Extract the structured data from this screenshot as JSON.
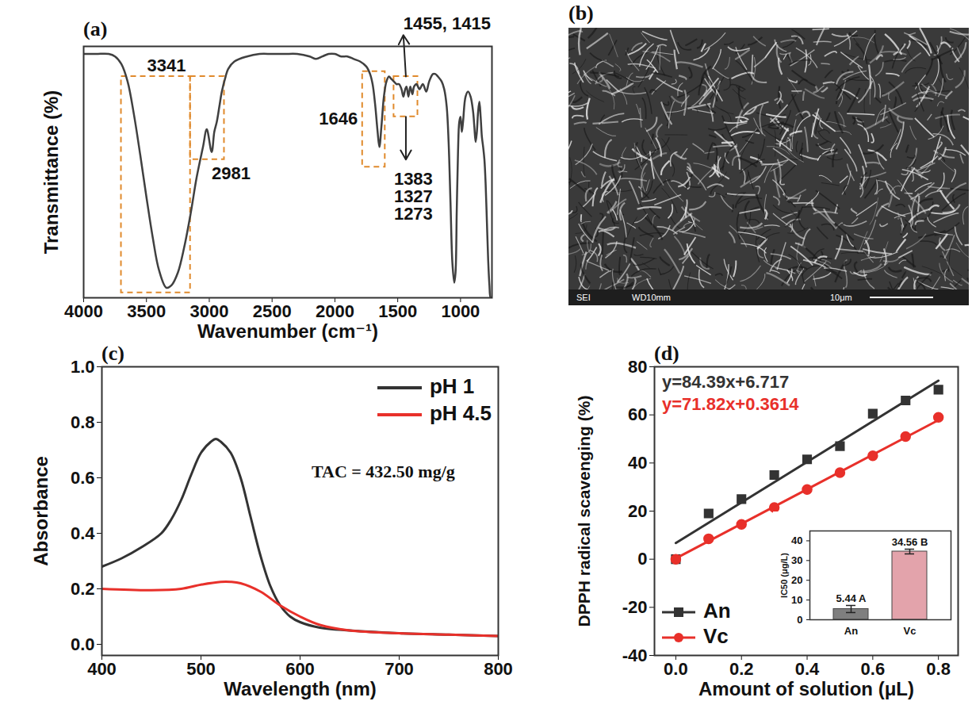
{
  "chart_data": [
    {
      "type": "line",
      "title": "(a)",
      "x_label": "Wavenumber (cm⁻¹)",
      "y_label": "Transmittance (%)",
      "xlim": [
        4000,
        750
      ],
      "xticks": [
        4000,
        3500,
        3000,
        2500,
        2000,
        1500,
        1000
      ],
      "ylim": [
        0,
        100
      ],
      "tick_labels": "x",
      "color": "#404040",
      "x": [
        4000,
        3900,
        3800,
        3750,
        3700,
        3650,
        3600,
        3550,
        3500,
        3450,
        3400,
        3341,
        3300,
        3250,
        3200,
        3150,
        3100,
        3050,
        3020,
        2981,
        2960,
        2940,
        2920,
        2900,
        2870,
        2850,
        2800,
        2700,
        2600,
        2500,
        2400,
        2300,
        2200,
        2150,
        2100,
        2050,
        2000,
        1950,
        1900,
        1850,
        1800,
        1750,
        1720,
        1700,
        1680,
        1660,
        1646,
        1630,
        1610,
        1590,
        1570,
        1550,
        1530,
        1510,
        1490,
        1470,
        1455,
        1440,
        1430,
        1415,
        1400,
        1383,
        1370,
        1350,
        1327,
        1300,
        1273,
        1250,
        1220,
        1200,
        1180,
        1150,
        1130,
        1110,
        1095,
        1080,
        1065,
        1050,
        1040,
        1030,
        1020,
        1010,
        1000,
        990,
        980,
        960,
        940,
        920,
        900,
        890,
        880,
        870,
        860,
        850,
        840,
        830,
        820,
        810,
        800,
        790,
        780,
        770,
        760,
        750
      ],
      "values": [
        97,
        97,
        97,
        96,
        93,
        86,
        73,
        57,
        40,
        24,
        11,
        4,
        5,
        10,
        20,
        33,
        48,
        60,
        67,
        58,
        66,
        70,
        76,
        82,
        88,
        91,
        94,
        96,
        97,
        97,
        97,
        97,
        96,
        95,
        96,
        97,
        97,
        96,
        96,
        95,
        94,
        92,
        89,
        85,
        77,
        66,
        60,
        68,
        80,
        86,
        88,
        87,
        86,
        85,
        85,
        83,
        80,
        83,
        84,
        80,
        84,
        81,
        84,
        85,
        83,
        85,
        82,
        86,
        89,
        89,
        88,
        86,
        83,
        76,
        62,
        38,
        14,
        6,
        10,
        35,
        58,
        70,
        72,
        66,
        70,
        80,
        82,
        80,
        74,
        68,
        62,
        66,
        74,
        78,
        72,
        64,
        60,
        55,
        45,
        30,
        15,
        5,
        0,
        0
      ],
      "regions": [
        {
          "x": [
            3700,
            3150
          ],
          "y": [
            2,
            88
          ]
        },
        {
          "x": [
            3150,
            2880
          ],
          "y": [
            55,
            88
          ]
        },
        {
          "x": [
            1780,
            1600
          ],
          "y": [
            52,
            90
          ]
        },
        {
          "x": [
            1530,
            1340
          ],
          "y": [
            72,
            88
          ]
        }
      ],
      "annotations": [
        {
          "text": "3341",
          "x": 3341
        },
        {
          "text": "2981",
          "x": 2981
        },
        {
          "text": "1646",
          "x": 1646
        },
        {
          "text": "1455, 1415",
          "x": 1455
        },
        {
          "text": "1383\n1327\n1273",
          "x": 1383
        }
      ]
    },
    {
      "type": "image",
      "title": "(b)",
      "texts": [
        "SEI",
        "WD10mm",
        "10μm"
      ]
    },
    {
      "type": "line",
      "title": "(c)",
      "x_label": "Wavelength (nm)",
      "y_label": "Absorbance",
      "xlim": [
        400,
        800
      ],
      "xticks": [
        400,
        500,
        600,
        700,
        800
      ],
      "ylim": [
        -0.04,
        1.0
      ],
      "yticks": [
        {
          "value": 0,
          "label": "0.0"
        },
        0.2,
        0.4,
        0.6,
        0.8,
        {
          "value": 1,
          "label": "1.0"
        }
      ],
      "legend": "top-right",
      "series": [
        {
          "name": "pH 1",
          "color": "#333333",
          "x": [
            400,
            420,
            440,
            460,
            470,
            480,
            490,
            500,
            510,
            515,
            520,
            530,
            540,
            550,
            560,
            570,
            580,
            590,
            600,
            620,
            650,
            700,
            750,
            800
          ],
          "values": [
            0.28,
            0.31,
            0.35,
            0.4,
            0.45,
            0.52,
            0.61,
            0.69,
            0.73,
            0.74,
            0.73,
            0.69,
            0.6,
            0.46,
            0.32,
            0.21,
            0.14,
            0.1,
            0.08,
            0.06,
            0.05,
            0.04,
            0.035,
            0.03
          ]
        },
        {
          "name": "pH 4.5",
          "color": "#e8302a",
          "x": [
            400,
            450,
            480,
            500,
            520,
            530,
            540,
            560,
            580,
            600,
            620,
            650,
            700,
            750,
            800
          ],
          "values": [
            0.2,
            0.195,
            0.2,
            0.215,
            0.225,
            0.225,
            0.22,
            0.19,
            0.14,
            0.1,
            0.07,
            0.05,
            0.04,
            0.035,
            0.03
          ]
        }
      ],
      "annotations": [
        {
          "text": "TAC = 432.50 mg/g"
        }
      ]
    },
    {
      "type": "scatter",
      "title": "(d)",
      "x_label": "Amount of solution (μL)",
      "y_label": "DPPH radical scavenging (%)",
      "xlim": [
        -0.065,
        0.86
      ],
      "xticks": [
        {
          "value": 0,
          "label": "0.0"
        },
        0.2,
        0.4,
        0.6,
        0.8
      ],
      "ylim": [
        -40,
        80
      ],
      "yticks": [
        -40,
        -20,
        0,
        20,
        40,
        60,
        80
      ],
      "legend": "bottom-left",
      "x": [
        0,
        0.1,
        0.2,
        0.3,
        0.4,
        0.5,
        0.6,
        0.7,
        0.8
      ],
      "series": [
        {
          "name": "An",
          "color": "#333333",
          "marker": "square",
          "values": [
            0,
            19,
            25,
            35,
            41.5,
            47,
            60.5,
            66,
            70.5
          ],
          "fit": {
            "slope": 84.39,
            "intercept": 6.717,
            "equation": "y=84.39x+6.717"
          }
        },
        {
          "name": "Vc",
          "color": "#e8302a",
          "marker": "circle",
          "values": [
            0,
            8.5,
            14.5,
            21.5,
            29,
            36,
            43,
            51,
            59
          ],
          "fit": {
            "slope": 71.82,
            "intercept": 0.3614,
            "equation": "y=71.82x+0.3614"
          }
        }
      ],
      "inset": {
        "type": "bar",
        "y_label": "IC50 (μg/L)",
        "categories": [
          "An",
          "Vc"
        ],
        "values": [
          5.44,
          34.56
        ],
        "value_labels": [
          "5.44 A",
          "34.56 B"
        ],
        "errors": [
          1.8,
          1.2
        ],
        "colors": [
          "#7f7f7f",
          "#e3a3ab"
        ],
        "ylim": [
          0,
          45
        ],
        "yticks": [
          0,
          10,
          20,
          30,
          40
        ],
        "data_labels": true
      }
    }
  ]
}
